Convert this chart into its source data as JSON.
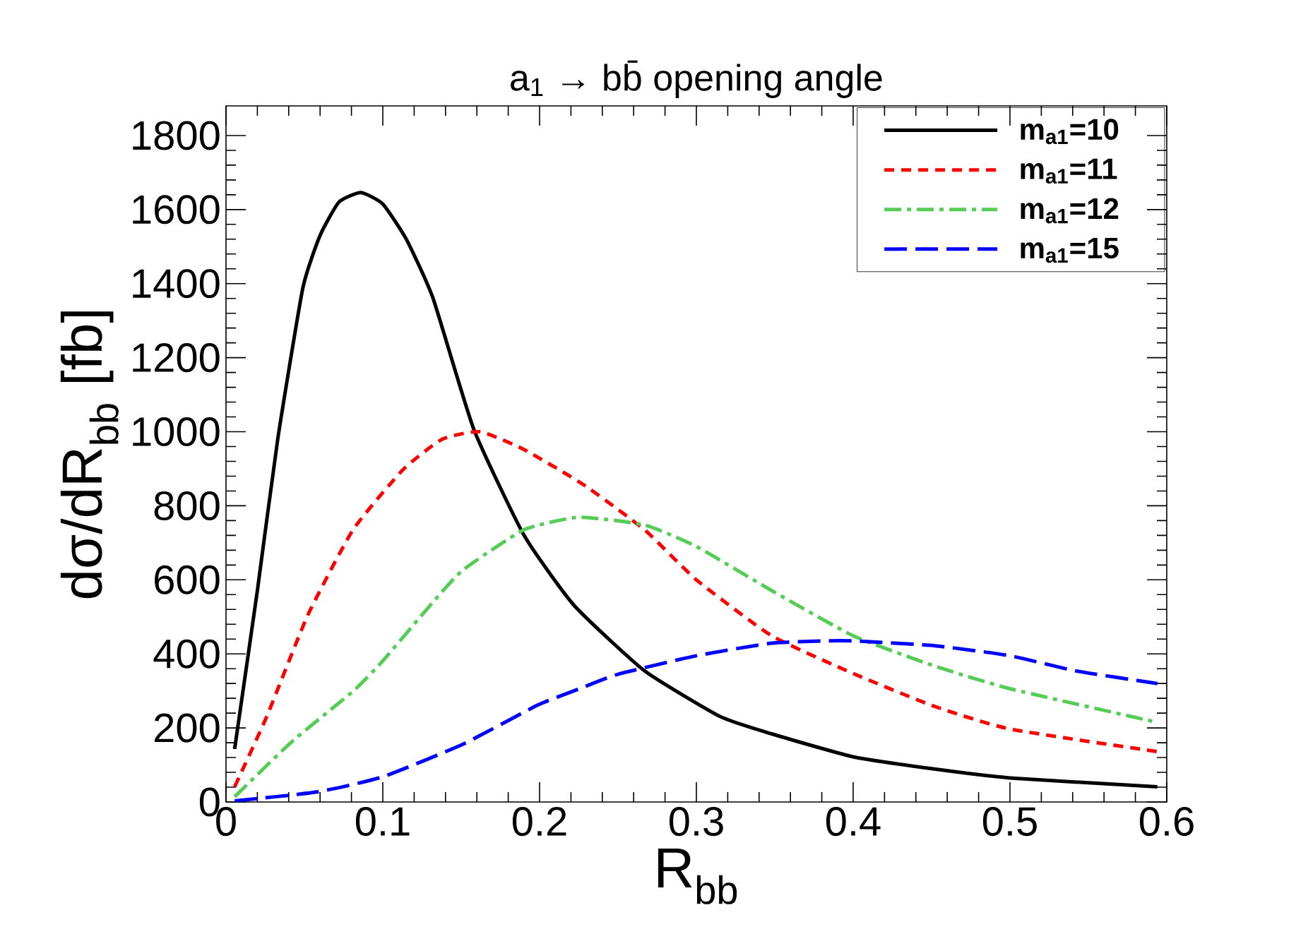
{
  "chart_data": {
    "type": "line",
    "title": "a$_{1}$ → bb̄ opening angle",
    "xlabel": "R$_{bb}$",
    "ylabel": "dσ/dR$_{bb}$ [fb]",
    "xlim": [
      0,
      0.6
    ],
    "ylim": [
      0,
      1880
    ],
    "xticks": [
      0,
      0.1,
      0.2,
      0.3,
      0.4,
      0.5,
      0.6
    ],
    "yticks": [
      0,
      200,
      400,
      600,
      800,
      1000,
      1200,
      1400,
      1600,
      1800
    ],
    "grid": false,
    "legend": "top right",
    "marker": "none",
    "series": [
      {
        "name": "m$_{a1}$=10",
        "color": "#000000",
        "line_style": "solid",
        "x": [
          0.0055,
          0.02,
          0.033,
          0.049,
          0.06,
          0.072,
          0.086,
          0.1,
          0.115,
          0.132,
          0.158,
          0.19,
          0.222,
          0.267,
          0.315,
          0.348,
          0.4,
          0.45,
          0.5,
          0.594
        ],
        "values": [
          143,
          571,
          980,
          1388,
          1530,
          1620,
          1646,
          1615,
          1520,
          1361,
          1007,
          721,
          531,
          354,
          231,
          184,
          122,
          90,
          65,
          41
        ]
      },
      {
        "name": "m$_{a1}$=11",
        "color": "#ff0000",
        "line_style": "dotted",
        "x": [
          0.0055,
          0.026,
          0.052,
          0.081,
          0.113,
          0.138,
          0.162,
          0.19,
          0.228,
          0.267,
          0.3,
          0.348,
          0.4,
          0.452,
          0.5,
          0.594
        ],
        "values": [
          41,
          231,
          503,
          735,
          898,
          980,
          1000,
          952,
          857,
          735,
          600,
          449,
          347,
          258,
          197,
          136
        ]
      },
      {
        "name": "m$_{a1}$=12",
        "color": "#55cc55",
        "line_style": "dashdot",
        "x": [
          0.0055,
          0.042,
          0.081,
          0.1,
          0.13,
          0.151,
          0.19,
          0.225,
          0.267,
          0.3,
          0.348,
          0.4,
          0.452,
          0.5,
          0.594
        ],
        "values": [
          14,
          163,
          299,
          381,
          530,
          626,
          735,
          769,
          748,
          690,
          571,
          449,
          367,
          306,
          215
        ]
      },
      {
        "name": "m$_{a1}$=15",
        "color": "#0000ff",
        "line_style": "dashed",
        "x": [
          0.0055,
          0.058,
          0.1,
          0.151,
          0.199,
          0.225,
          0.25,
          0.3,
          0.348,
          0.381,
          0.4,
          0.452,
          0.5,
          0.542,
          0.594
        ],
        "values": [
          3,
          27,
          68,
          156,
          262,
          305,
          345,
          395,
          429,
          435,
          435,
          422,
          395,
          354,
          320
        ]
      }
    ]
  }
}
